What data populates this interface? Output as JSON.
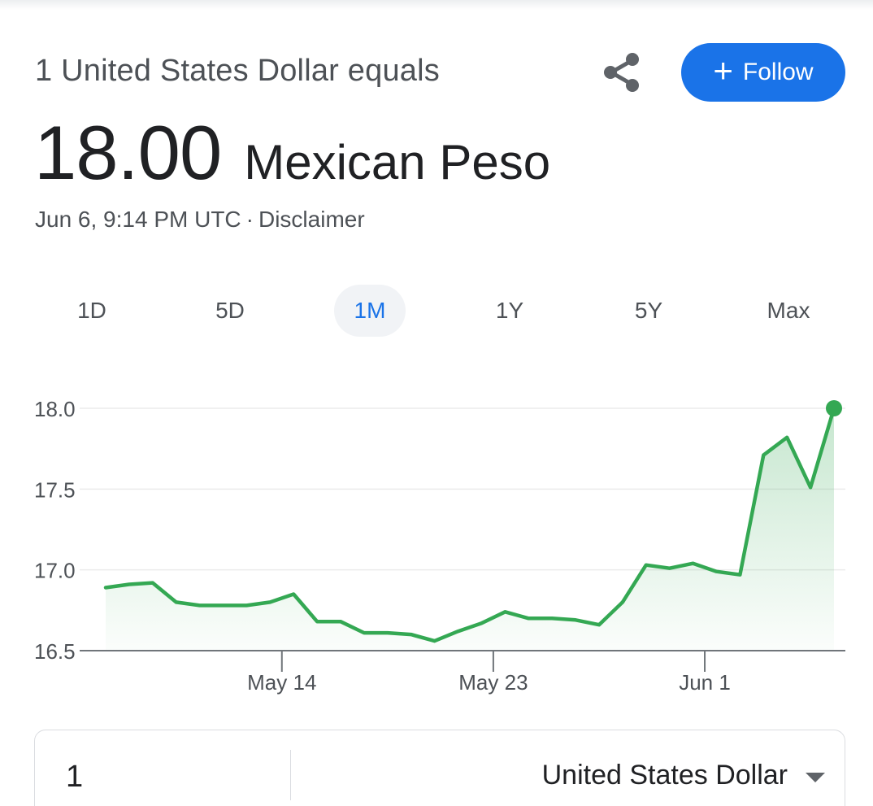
{
  "header": {
    "subtitle": "1 United States Dollar equals",
    "rate_value": "18.00",
    "rate_currency": "Mexican Peso",
    "timestamp": "Jun 6, 9:14 PM UTC",
    "separator": "·",
    "disclaimer": "Disclaimer",
    "share_icon": "share-icon",
    "follow_label": "Follow",
    "follow_icon": "plus-icon"
  },
  "range_tabs": [
    {
      "label": "1D",
      "active": false
    },
    {
      "label": "5D",
      "active": false
    },
    {
      "label": "1M",
      "active": true
    },
    {
      "label": "1Y",
      "active": false
    },
    {
      "label": "5Y",
      "active": false
    },
    {
      "label": "Max",
      "active": false
    }
  ],
  "chart_data": {
    "type": "area",
    "title": "",
    "xlabel": "",
    "ylabel": "",
    "ylim": [
      16.5,
      18.0
    ],
    "yticks": [
      "18.0",
      "17.5",
      "17.0",
      "16.5"
    ],
    "xticks": [
      {
        "label": "May 14",
        "index": 7.5
      },
      {
        "label": "May 23",
        "index": 16.5
      },
      {
        "label": "Jun 1",
        "index": 25.5
      }
    ],
    "grid": true,
    "series": [
      {
        "color": "#34a853",
        "values": [
          16.89,
          16.91,
          16.92,
          16.8,
          16.78,
          16.78,
          16.78,
          16.8,
          16.85,
          16.68,
          16.68,
          16.61,
          16.61,
          16.6,
          16.56,
          16.62,
          16.67,
          16.74,
          16.7,
          16.7,
          16.69,
          16.66,
          16.8,
          17.03,
          17.01,
          17.04,
          16.99,
          16.97,
          17.71,
          17.82,
          17.51,
          18.0
        ]
      }
    ]
  },
  "converter": {
    "amount": "1",
    "currency": "United States Dollar",
    "caret_icon": "caret-down-icon"
  },
  "colors": {
    "accent": "#1a73e8",
    "line": "#34a853"
  }
}
